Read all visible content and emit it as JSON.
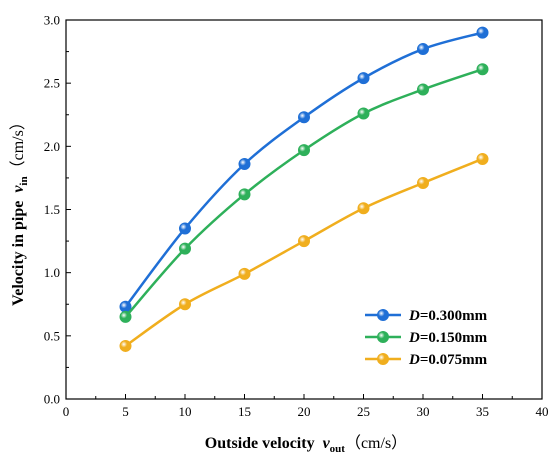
{
  "chart_data": {
    "type": "line",
    "x": [
      5,
      10,
      15,
      20,
      25,
      30,
      35
    ],
    "series": [
      {
        "name": "D=0.300mm",
        "name_italic": "D",
        "name_rest": "=0.300mm",
        "color": "#1f6fd6",
        "values": [
          0.73,
          1.35,
          1.86,
          2.23,
          2.54,
          2.77,
          2.9
        ]
      },
      {
        "name": "D=0.150mm",
        "name_italic": "D",
        "name_rest": "=0.150mm",
        "color": "#2eb05a",
        "values": [
          0.65,
          1.19,
          1.62,
          1.97,
          2.26,
          2.45,
          2.61
        ]
      },
      {
        "name": "D=0.075mm",
        "name_italic": "D",
        "name_rest": "=0.075mm",
        "color": "#f0ae1e",
        "values": [
          0.42,
          0.75,
          0.99,
          1.25,
          1.51,
          1.71,
          1.9
        ]
      }
    ],
    "xlim": [
      0,
      40
    ],
    "ylim": [
      0.0,
      3.0
    ],
    "xticks": [
      "0",
      "5",
      "10",
      "15",
      "20",
      "25",
      "30",
      "35",
      "40"
    ],
    "yticks": [
      "0.0",
      "0.5",
      "1.0",
      "1.5",
      "2.0",
      "2.5",
      "3.0"
    ],
    "xlabel": {
      "text": "Outside velocity",
      "var": "v",
      "sub": "out",
      "unit": "（cm/s）"
    },
    "ylabel": {
      "text": "Velocity in pipe",
      "var": "v",
      "sub": "in",
      "unit": "（cm/s）"
    },
    "legend": "bottom-right",
    "grid": false
  }
}
